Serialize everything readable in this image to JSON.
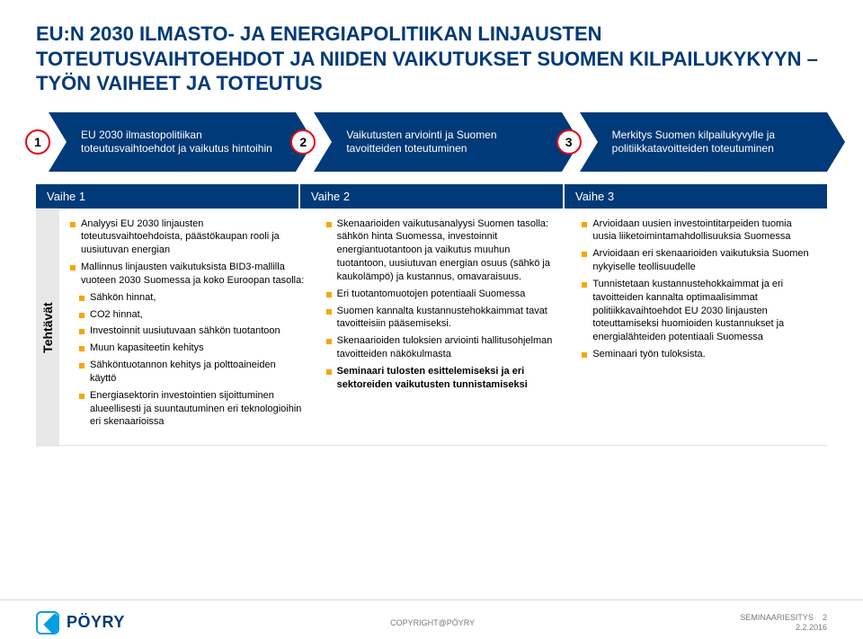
{
  "title": "EU:N 2030 ILMASTO- JA ENERGIAPOLITIIKAN LINJAUSTEN TOTEUTUSVAIHTOEHDOT JA NIIDEN VAIKUTUKSET SUOMEN KILPAILUKYKYYN – TYÖN VAIHEET JA TOTEUTUS",
  "steps": [
    {
      "n": "1",
      "text": "EU 2030 ilmastopolitiikan toteutusvaihtoehdot ja vaikutus hintoihin"
    },
    {
      "n": "2",
      "text": "Vaikutusten arviointi ja Suomen tavoitteiden toteutuminen"
    },
    {
      "n": "3",
      "text": "Merkitys Suomen kilpailukyvylle ja politiikkatavoitteiden toteutuminen"
    }
  ],
  "phase_headers": [
    "Vaihe 1",
    "Vaihe 2",
    "Vaihe 3"
  ],
  "vlabel": "Tehtävät",
  "col1": [
    {
      "t": "Analyysi EU 2030 linjausten toteutusvaihtoehdoista, päästökaupan rooli ja uusiutuvan energian"
    },
    {
      "t": "Mallinnus linjausten vaikutuksista BID3-mallilla vuoteen 2030 Suomessa ja koko Euroopan tasolla:"
    },
    {
      "t": "Sähkön hinnat,",
      "sub": true
    },
    {
      "t": "CO2 hinnat,",
      "sub": true
    },
    {
      "t": "Investoinnit uusiutuvaan sähkön tuotantoon",
      "sub": true
    },
    {
      "t": "Muun kapasiteetin kehitys",
      "sub": true
    },
    {
      "t": "Sähköntuotannon kehitys ja polttoaineiden käyttö",
      "sub": true
    },
    {
      "t": "Energiasektorin investointien sijoittuminen alueellisesti ja suuntautuminen eri teknologioihin eri skenaarioissa",
      "sub": true
    }
  ],
  "col2": [
    {
      "t": "Skenaarioiden vaikutusanalyysi Suomen tasolla: sähkön hinta Suomessa, investoinnit energiantuotantoon ja vaikutus muuhun tuotantoon, uusiutuvan energian osuus (sähkö ja kaukolämpö) ja kustannus, omavaraisuus."
    },
    {
      "t": "Eri tuotantomuotojen potentiaali Suomessa"
    },
    {
      "t": "Suomen kannalta kustannustehokkaimmat tavat tavoitteisiin pääsemiseksi."
    },
    {
      "t": "Skenaarioiden tuloksien arviointi hallitusohjelman tavoitteiden näkökulmasta"
    },
    {
      "t": "Seminaari tulosten esittelemiseksi ja eri sektoreiden vaikutusten tunnistamiseksi",
      "bold": true
    }
  ],
  "col3": [
    {
      "t": "Arvioidaan uusien investointitarpeiden tuomia uusia liiketoimintamahdollisuuksia Suomessa"
    },
    {
      "t": "Arvioidaan eri skenaarioiden vaikutuksia Suomen nykyiselle teollisuudelle"
    },
    {
      "t": "Tunnistetaan kustannustehokkaimmat ja eri tavoitteiden kannalta optimaalisimmat politiikkavaihtoehdot EU 2030 linjausten toteuttamiseksi huomioiden kustannukset ja energialähteiden potentiaali Suomessa"
    },
    {
      "t": "Seminaari työn tuloksista."
    }
  ],
  "footer": {
    "logo": "PÖYRY",
    "center": "COPYRIGHT@PÖYRY",
    "right1": "SEMINAARIESITYS",
    "right2": "2.2.2016",
    "page": "2"
  }
}
